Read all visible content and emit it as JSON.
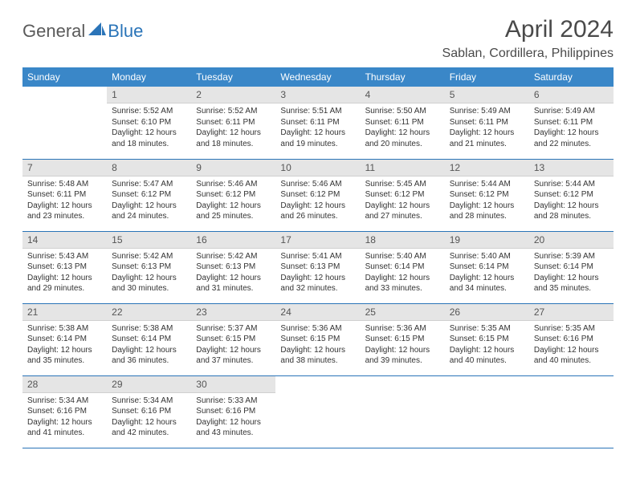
{
  "brand": {
    "part1": "General",
    "part2": "Blue",
    "icon_color": "#2a74b8"
  },
  "title": "April 2024",
  "location": "Sablan, Cordillera, Philippines",
  "colors": {
    "header_bg": "#3a87c8",
    "header_text": "#ffffff",
    "row_border": "#2a74b8",
    "daynum_bg": "#e5e5e5",
    "body_text": "#333333"
  },
  "daysOfWeek": [
    "Sunday",
    "Monday",
    "Tuesday",
    "Wednesday",
    "Thursday",
    "Friday",
    "Saturday"
  ],
  "weeks": [
    [
      {
        "n": "",
        "sunrise": "",
        "sunset": "",
        "daylight": ""
      },
      {
        "n": "1",
        "sunrise": "Sunrise: 5:52 AM",
        "sunset": "Sunset: 6:10 PM",
        "daylight": "Daylight: 12 hours and 18 minutes."
      },
      {
        "n": "2",
        "sunrise": "Sunrise: 5:52 AM",
        "sunset": "Sunset: 6:11 PM",
        "daylight": "Daylight: 12 hours and 18 minutes."
      },
      {
        "n": "3",
        "sunrise": "Sunrise: 5:51 AM",
        "sunset": "Sunset: 6:11 PM",
        "daylight": "Daylight: 12 hours and 19 minutes."
      },
      {
        "n": "4",
        "sunrise": "Sunrise: 5:50 AM",
        "sunset": "Sunset: 6:11 PM",
        "daylight": "Daylight: 12 hours and 20 minutes."
      },
      {
        "n": "5",
        "sunrise": "Sunrise: 5:49 AM",
        "sunset": "Sunset: 6:11 PM",
        "daylight": "Daylight: 12 hours and 21 minutes."
      },
      {
        "n": "6",
        "sunrise": "Sunrise: 5:49 AM",
        "sunset": "Sunset: 6:11 PM",
        "daylight": "Daylight: 12 hours and 22 minutes."
      }
    ],
    [
      {
        "n": "7",
        "sunrise": "Sunrise: 5:48 AM",
        "sunset": "Sunset: 6:11 PM",
        "daylight": "Daylight: 12 hours and 23 minutes."
      },
      {
        "n": "8",
        "sunrise": "Sunrise: 5:47 AM",
        "sunset": "Sunset: 6:12 PM",
        "daylight": "Daylight: 12 hours and 24 minutes."
      },
      {
        "n": "9",
        "sunrise": "Sunrise: 5:46 AM",
        "sunset": "Sunset: 6:12 PM",
        "daylight": "Daylight: 12 hours and 25 minutes."
      },
      {
        "n": "10",
        "sunrise": "Sunrise: 5:46 AM",
        "sunset": "Sunset: 6:12 PM",
        "daylight": "Daylight: 12 hours and 26 minutes."
      },
      {
        "n": "11",
        "sunrise": "Sunrise: 5:45 AM",
        "sunset": "Sunset: 6:12 PM",
        "daylight": "Daylight: 12 hours and 27 minutes."
      },
      {
        "n": "12",
        "sunrise": "Sunrise: 5:44 AM",
        "sunset": "Sunset: 6:12 PM",
        "daylight": "Daylight: 12 hours and 28 minutes."
      },
      {
        "n": "13",
        "sunrise": "Sunrise: 5:44 AM",
        "sunset": "Sunset: 6:12 PM",
        "daylight": "Daylight: 12 hours and 28 minutes."
      }
    ],
    [
      {
        "n": "14",
        "sunrise": "Sunrise: 5:43 AM",
        "sunset": "Sunset: 6:13 PM",
        "daylight": "Daylight: 12 hours and 29 minutes."
      },
      {
        "n": "15",
        "sunrise": "Sunrise: 5:42 AM",
        "sunset": "Sunset: 6:13 PM",
        "daylight": "Daylight: 12 hours and 30 minutes."
      },
      {
        "n": "16",
        "sunrise": "Sunrise: 5:42 AM",
        "sunset": "Sunset: 6:13 PM",
        "daylight": "Daylight: 12 hours and 31 minutes."
      },
      {
        "n": "17",
        "sunrise": "Sunrise: 5:41 AM",
        "sunset": "Sunset: 6:13 PM",
        "daylight": "Daylight: 12 hours and 32 minutes."
      },
      {
        "n": "18",
        "sunrise": "Sunrise: 5:40 AM",
        "sunset": "Sunset: 6:14 PM",
        "daylight": "Daylight: 12 hours and 33 minutes."
      },
      {
        "n": "19",
        "sunrise": "Sunrise: 5:40 AM",
        "sunset": "Sunset: 6:14 PM",
        "daylight": "Daylight: 12 hours and 34 minutes."
      },
      {
        "n": "20",
        "sunrise": "Sunrise: 5:39 AM",
        "sunset": "Sunset: 6:14 PM",
        "daylight": "Daylight: 12 hours and 35 minutes."
      }
    ],
    [
      {
        "n": "21",
        "sunrise": "Sunrise: 5:38 AM",
        "sunset": "Sunset: 6:14 PM",
        "daylight": "Daylight: 12 hours and 35 minutes."
      },
      {
        "n": "22",
        "sunrise": "Sunrise: 5:38 AM",
        "sunset": "Sunset: 6:14 PM",
        "daylight": "Daylight: 12 hours and 36 minutes."
      },
      {
        "n": "23",
        "sunrise": "Sunrise: 5:37 AM",
        "sunset": "Sunset: 6:15 PM",
        "daylight": "Daylight: 12 hours and 37 minutes."
      },
      {
        "n": "24",
        "sunrise": "Sunrise: 5:36 AM",
        "sunset": "Sunset: 6:15 PM",
        "daylight": "Daylight: 12 hours and 38 minutes."
      },
      {
        "n": "25",
        "sunrise": "Sunrise: 5:36 AM",
        "sunset": "Sunset: 6:15 PM",
        "daylight": "Daylight: 12 hours and 39 minutes."
      },
      {
        "n": "26",
        "sunrise": "Sunrise: 5:35 AM",
        "sunset": "Sunset: 6:15 PM",
        "daylight": "Daylight: 12 hours and 40 minutes."
      },
      {
        "n": "27",
        "sunrise": "Sunrise: 5:35 AM",
        "sunset": "Sunset: 6:16 PM",
        "daylight": "Daylight: 12 hours and 40 minutes."
      }
    ],
    [
      {
        "n": "28",
        "sunrise": "Sunrise: 5:34 AM",
        "sunset": "Sunset: 6:16 PM",
        "daylight": "Daylight: 12 hours and 41 minutes."
      },
      {
        "n": "29",
        "sunrise": "Sunrise: 5:34 AM",
        "sunset": "Sunset: 6:16 PM",
        "daylight": "Daylight: 12 hours and 42 minutes."
      },
      {
        "n": "30",
        "sunrise": "Sunrise: 5:33 AM",
        "sunset": "Sunset: 6:16 PM",
        "daylight": "Daylight: 12 hours and 43 minutes."
      },
      {
        "n": "",
        "sunrise": "",
        "sunset": "",
        "daylight": ""
      },
      {
        "n": "",
        "sunrise": "",
        "sunset": "",
        "daylight": ""
      },
      {
        "n": "",
        "sunrise": "",
        "sunset": "",
        "daylight": ""
      },
      {
        "n": "",
        "sunrise": "",
        "sunset": "",
        "daylight": ""
      }
    ]
  ]
}
